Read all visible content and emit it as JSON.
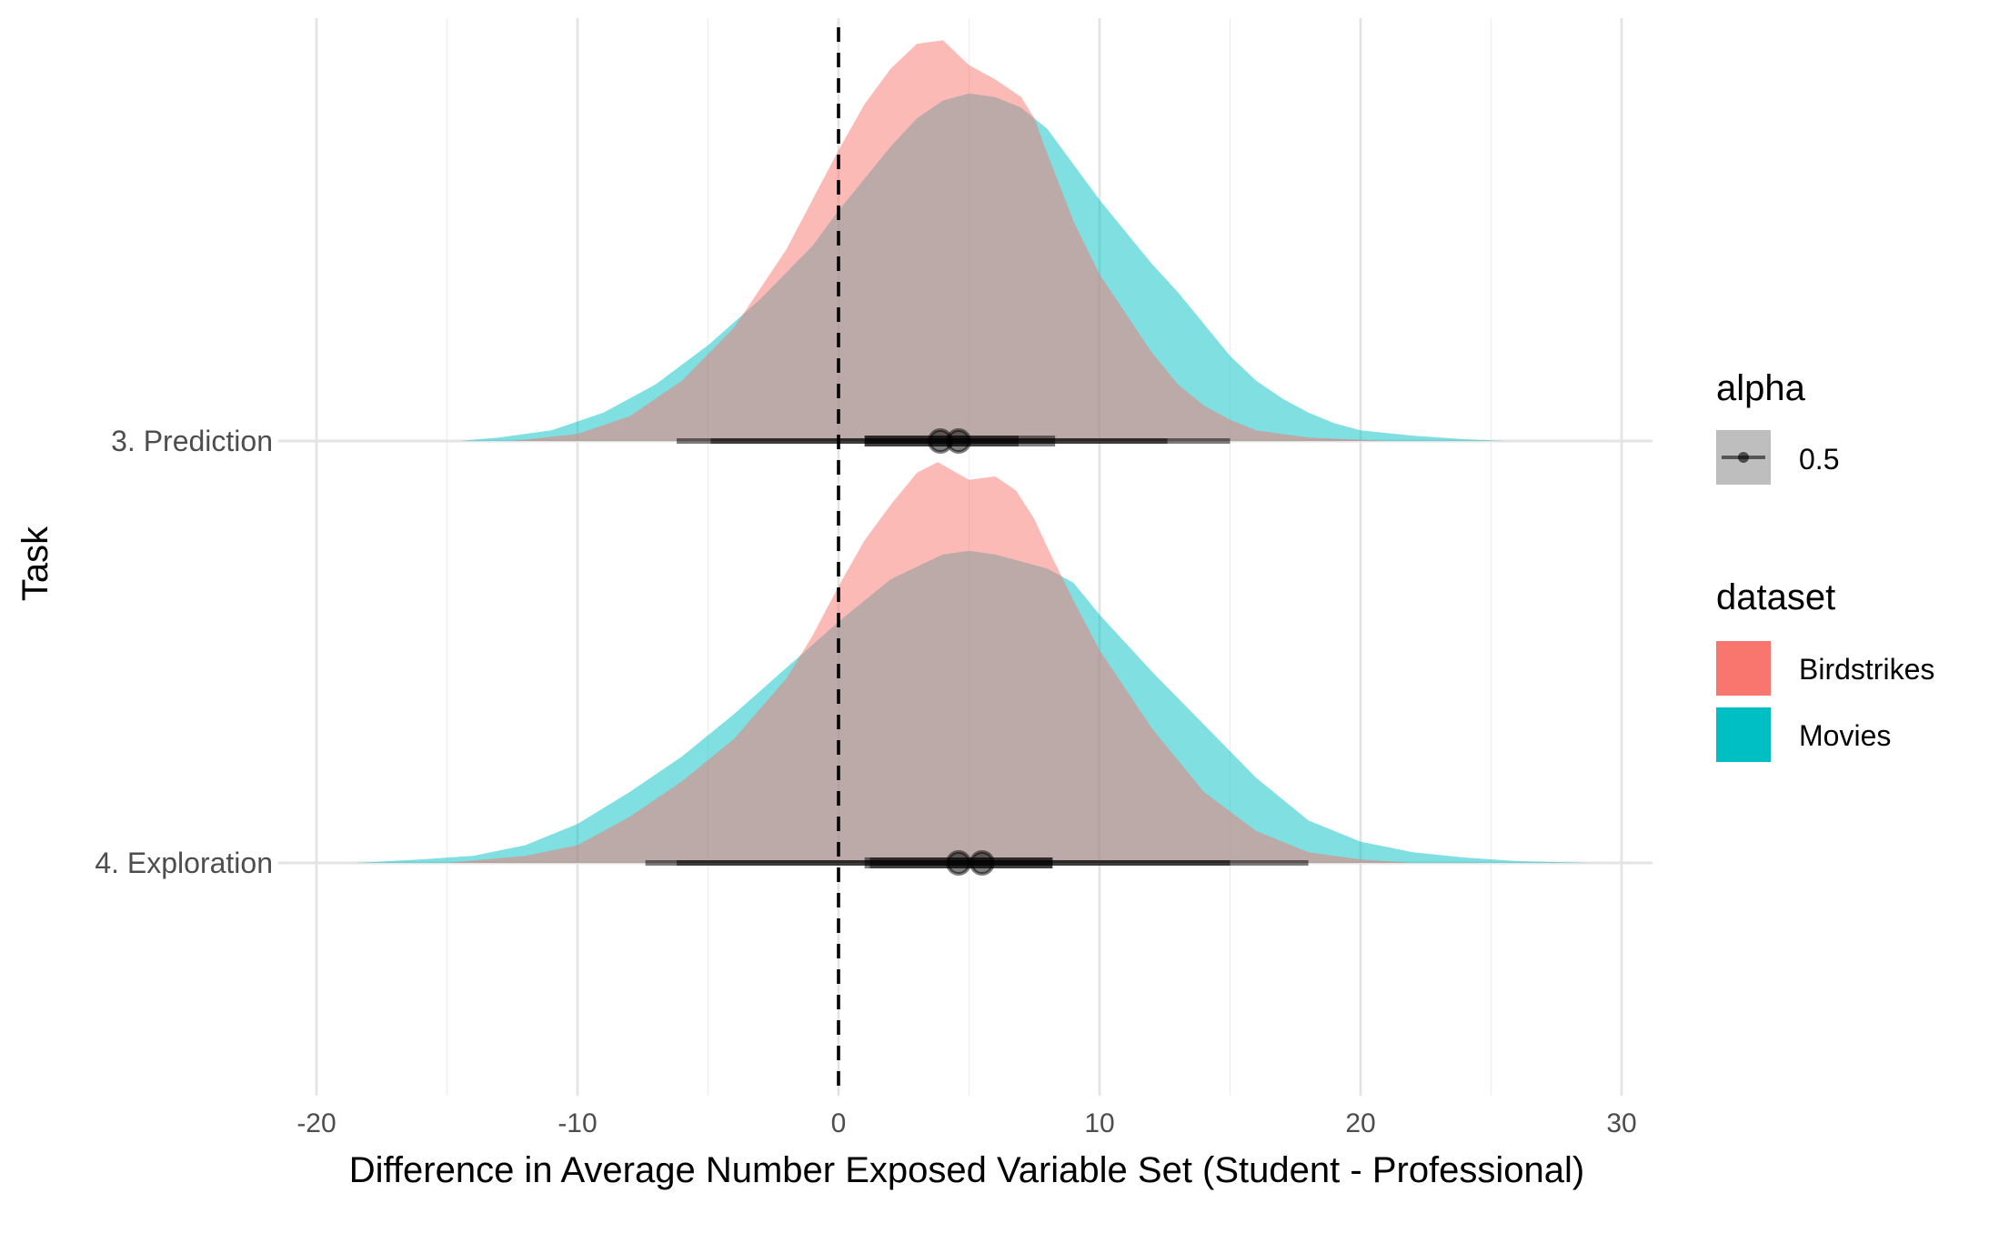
{
  "chart_data": {
    "type": "ridgeline-density",
    "xlabel": "Difference in Average Number Exposed Variable Set (Student - Professional)",
    "ylabel": "Task",
    "xlim": [
      -20,
      30
    ],
    "x_ticks": [
      -20,
      -10,
      0,
      10,
      20,
      30
    ],
    "x_tick_labels": [
      "-20",
      "-10",
      "0",
      "10",
      "20",
      "30"
    ],
    "x_minor_ticks": [
      -15,
      -5,
      5,
      15,
      25
    ],
    "grid": true,
    "reference_line": {
      "x": 0,
      "style": "dashed"
    },
    "categories": [
      "3. Prediction",
      "4. Exploration"
    ],
    "legend": {
      "position": "right",
      "alpha": {
        "title": "alpha",
        "label": "0.5"
      },
      "dataset": {
        "title": "dataset",
        "entries": [
          {
            "name": "Birdstrikes",
            "color": "#F8766D"
          },
          {
            "name": "Movies",
            "color": "#00BFC4"
          }
        ]
      }
    },
    "series": [
      {
        "name": "Movies",
        "color": "#00BFC4",
        "by_task": [
          {
            "task": "3. Prediction",
            "density_x": [
              -14.5,
              -13,
              -11,
              -9,
              -7,
              -5,
              -3,
              -1,
              0,
              1,
              2,
              3,
              4,
              5,
              6,
              7,
              8,
              9,
              10,
              11,
              12,
              13,
              14,
              15,
              16,
              17,
              18,
              19,
              20,
              22,
              24,
              25.5
            ],
            "density_y": [
              0.0,
              0.01,
              0.03,
              0.08,
              0.16,
              0.27,
              0.4,
              0.55,
              0.65,
              0.74,
              0.83,
              0.91,
              0.96,
              0.98,
              0.97,
              0.94,
              0.88,
              0.78,
              0.68,
              0.59,
              0.5,
              0.42,
              0.33,
              0.24,
              0.17,
              0.12,
              0.08,
              0.05,
              0.03,
              0.015,
              0.005,
              0.0
            ],
            "point": 4.6,
            "interval_inner": [
              1.0,
              8.3
            ],
            "interval_outer": [
              -4.9,
              15.0
            ]
          },
          {
            "task": "4. Exploration",
            "density_x": [
              -18.5,
              -16,
              -14,
              -12,
              -10,
              -8,
              -6,
              -4,
              -2,
              0,
              2,
              4,
              5,
              6,
              8,
              9,
              10,
              12,
              14,
              16,
              18,
              20,
              22,
              24,
              26,
              28.8
            ],
            "density_y": [
              0.0,
              0.01,
              0.02,
              0.05,
              0.11,
              0.2,
              0.3,
              0.42,
              0.55,
              0.68,
              0.8,
              0.87,
              0.88,
              0.87,
              0.83,
              0.79,
              0.7,
              0.54,
              0.39,
              0.24,
              0.12,
              0.06,
              0.03,
              0.015,
              0.005,
              0.0
            ],
            "point": 5.5,
            "interval_inner": [
              1.2,
              8.2
            ],
            "interval_outer": [
              -6.2,
              15.0
            ]
          }
        ]
      },
      {
        "name": "Birdstrikes",
        "color": "#F8766D",
        "by_task": [
          {
            "task": "3. Prediction",
            "density_x": [
              -12.5,
              -10,
              -8,
              -6,
              -4,
              -2,
              -1,
              0,
              1,
              2,
              3,
              4,
              5,
              6,
              7,
              7.5,
              8,
              9,
              10,
              11,
              12,
              13,
              14,
              15,
              16,
              18,
              21
            ],
            "density_y": [
              0.0,
              0.02,
              0.07,
              0.17,
              0.32,
              0.54,
              0.68,
              0.82,
              0.95,
              1.05,
              1.12,
              1.13,
              1.06,
              1.02,
              0.97,
              0.91,
              0.81,
              0.62,
              0.47,
              0.36,
              0.25,
              0.16,
              0.1,
              0.06,
              0.03,
              0.01,
              0.0
            ],
            "point": 3.9,
            "interval_inner": [
              1.0,
              6.9
            ],
            "interval_outer": [
              -6.2,
              12.6
            ]
          },
          {
            "task": "4. Exploration",
            "density_x": [
              -15,
              -12,
              -10,
              -8,
              -6,
              -4,
              -2,
              -1,
              0,
              1,
              2,
              3,
              3.8,
              5,
              6,
              6.8,
              7.5,
              8,
              9,
              10,
              12,
              14,
              16,
              18,
              20,
              22
            ],
            "density_y": [
              0.0,
              0.02,
              0.05,
              0.13,
              0.23,
              0.35,
              0.52,
              0.64,
              0.78,
              0.91,
              1.01,
              1.1,
              1.13,
              1.08,
              1.09,
              1.05,
              0.97,
              0.89,
              0.74,
              0.6,
              0.38,
              0.2,
              0.09,
              0.03,
              0.01,
              0.0
            ],
            "point": 4.6,
            "interval_inner": [
              1.0,
              8.2
            ],
            "interval_outer": [
              -7.4,
              18.0
            ]
          }
        ]
      }
    ]
  }
}
